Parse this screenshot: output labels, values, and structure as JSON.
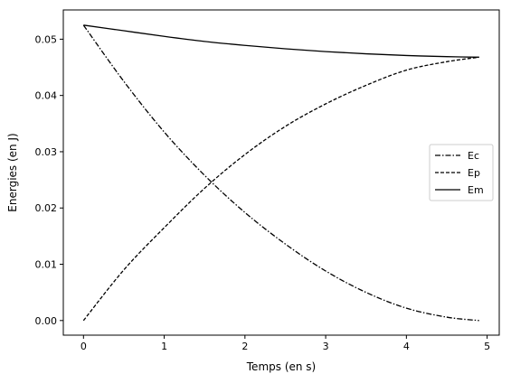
{
  "chart_data": {
    "type": "line",
    "xlabel": "Temps (en s)",
    "ylabel": "Energies (en J)",
    "xlim": [
      -0.25,
      5.15
    ],
    "ylim": [
      -0.0026,
      0.0552
    ],
    "xticks": [
      0,
      1,
      2,
      3,
      4,
      5
    ],
    "xtick_labels": [
      "0",
      "1",
      "2",
      "3",
      "4",
      "5"
    ],
    "yticks": [
      0.0,
      0.01,
      0.02,
      0.03,
      0.04,
      0.05
    ],
    "ytick_labels": [
      "0.00",
      "0.01",
      "0.02",
      "0.03",
      "0.04",
      "0.05"
    ],
    "grid": false,
    "legend_position": "center-right",
    "x": [
      0,
      0.5,
      1.0,
      1.5,
      2.0,
      2.5,
      3.0,
      3.5,
      4.0,
      4.5,
      4.9
    ],
    "series": [
      {
        "name": "Ec",
        "style": "dashdot",
        "color": "#000000",
        "values": [
          0.0525,
          0.0425,
          0.0335,
          0.0258,
          0.0192,
          0.0136,
          0.0088,
          0.005,
          0.0022,
          0.0006,
          0.0
        ]
      },
      {
        "name": "Ep",
        "style": "dashed",
        "color": "#000000",
        "values": [
          0.0,
          0.009,
          0.0165,
          0.0235,
          0.0295,
          0.0345,
          0.0385,
          0.0418,
          0.0445,
          0.046,
          0.0468
        ]
      },
      {
        "name": "Em",
        "style": "solid",
        "color": "#000000",
        "values": [
          0.0525,
          0.0515,
          0.0505,
          0.0496,
          0.0489,
          0.0483,
          0.0478,
          0.0474,
          0.0471,
          0.0469,
          0.0468
        ]
      }
    ]
  }
}
